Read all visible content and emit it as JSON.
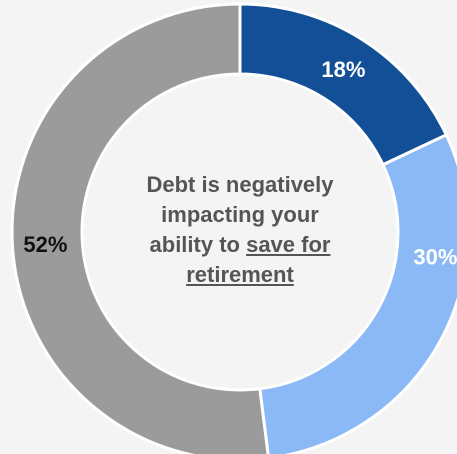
{
  "chart_data": {
    "type": "pie",
    "donut": true,
    "start_angle_deg": 0,
    "direction": "clockwise",
    "slices": [
      {
        "label": "18%",
        "value": 18,
        "color": "#134f96",
        "label_color": "#ffffff"
      },
      {
        "label": "30%",
        "value": 30,
        "color": "#8ab9f5",
        "label_color": "#ffffff"
      },
      {
        "label": "52%",
        "value": 52,
        "color": "#9b9b9b",
        "label_color": "#111111"
      }
    ],
    "center_text": {
      "line1": "Debt is negatively",
      "line2": "impacting your",
      "line3_plain": "ability to ",
      "line3_underlined": "save for",
      "line4_underlined": "retirement"
    }
  }
}
